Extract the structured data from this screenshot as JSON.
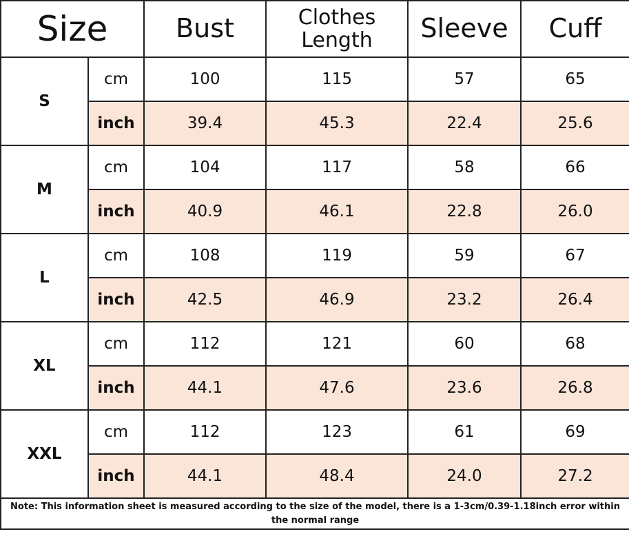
{
  "header": [
    "Size",
    "Bust",
    "Clothes Length",
    "Sleeve",
    "Cuff"
  ],
  "sizes": [
    {
      "size": "S",
      "rows": [
        {
          "unit": "cm",
          "values": [
            "100",
            "115",
            "57",
            "65"
          ]
        },
        {
          "unit": "inch",
          "values": [
            "39.4",
            "45.3",
            "22.4",
            "25.6"
          ]
        }
      ]
    },
    {
      "size": "M",
      "rows": [
        {
          "unit": "cm",
          "values": [
            "104",
            "117",
            "58",
            "66"
          ]
        },
        {
          "unit": "inch",
          "values": [
            "40.9",
            "46.1",
            "22.8",
            "26.0"
          ]
        }
      ]
    },
    {
      "size": "L",
      "rows": [
        {
          "unit": "cm",
          "values": [
            "108",
            "119",
            "59",
            "67"
          ]
        },
        {
          "unit": "inch",
          "values": [
            "42.5",
            "46.9",
            "23.2",
            "26.4"
          ]
        }
      ]
    },
    {
      "size": "XL",
      "rows": [
        {
          "unit": "cm",
          "values": [
            "112",
            "121",
            "60",
            "68"
          ]
        },
        {
          "unit": "inch",
          "values": [
            "44.1",
            "47.6",
            "23.6",
            "26.8"
          ]
        }
      ]
    },
    {
      "size": "XXL",
      "rows": [
        {
          "unit": "cm",
          "values": [
            "112",
            "123",
            "61",
            "69"
          ]
        },
        {
          "unit": "inch",
          "values": [
            "44.1",
            "48.4",
            "24.0",
            "27.2"
          ]
        }
      ]
    }
  ],
  "note": "Note: This information sheet is measured according to the size of the model, there is a 1-3cm/0.39-1.18inch error within the normal range"
}
